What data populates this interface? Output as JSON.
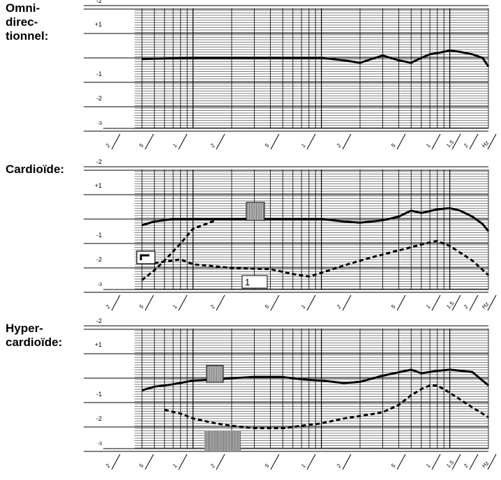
{
  "panels": [
    {
      "label": "Omni-\ndirec-\ntionnel:"
    },
    {
      "label": "Cardioïde:"
    },
    {
      "label": "Hyper-\ncardioïde:"
    }
  ],
  "y_tick_labels": [
    "-2",
    "+1",
    "",
    "-1",
    "-2",
    "-3"
  ],
  "x_tick_labels": [
    "2",
    "5",
    "1",
    "2",
    "5",
    "1",
    "2",
    "5",
    "1",
    "1.5",
    "2",
    "Hz"
  ],
  "chart_data": [
    {
      "type": "line",
      "title": "Omni-directionnel:",
      "x_scale": "log",
      "x_range_hz": [
        20,
        20000
      ],
      "y_unit": "divisions",
      "series": [
        {
          "style": "solid",
          "x": [
            40,
            60,
            100,
            200,
            500,
            1000,
            1500,
            2000,
            3000,
            4000,
            5000,
            6000,
            7000,
            8000,
            10000,
            12000,
            15000,
            18000,
            20000
          ],
          "y": [
            -0.05,
            -0.02,
            0,
            0,
            0,
            0,
            -0.1,
            -0.2,
            0.1,
            -0.1,
            -0.2,
            0.0,
            0.15,
            0.2,
            0.3,
            0.25,
            0.15,
            0.0,
            -0.35
          ]
        }
      ]
    },
    {
      "type": "line",
      "title": "Cardioïde:",
      "x_scale": "log",
      "x_range_hz": [
        20,
        20000
      ],
      "y_unit": "divisions",
      "series": [
        {
          "style": "solid",
          "x": [
            40,
            50,
            70,
            100,
            200,
            500,
            1000,
            1500,
            2000,
            3000,
            4000,
            5000,
            6000,
            8000,
            10000,
            12000,
            15000,
            18000,
            20000
          ],
          "y": [
            -0.25,
            -0.1,
            0,
            0,
            0,
            0,
            0,
            -0.1,
            -0.15,
            -0.05,
            0.1,
            0.35,
            0.25,
            0.4,
            0.45,
            0.35,
            0.1,
            -0.2,
            -0.5
          ]
        },
        {
          "style": "dashed",
          "x": [
            40,
            50,
            60,
            80,
            100,
            150
          ],
          "y": [
            -2.5,
            -2.1,
            -1.7,
            -1.0,
            -0.4,
            -0.05
          ]
        },
        {
          "style": "dashed",
          "x": [
            50,
            80,
            100,
            200,
            400,
            600,
            800,
            1000,
            1500,
            2000,
            3000,
            5000,
            7000,
            8000,
            10000,
            15000,
            20000
          ],
          "y": [
            -1.8,
            -1.65,
            -1.85,
            -2.0,
            -2.05,
            -2.25,
            -2.35,
            -2.2,
            -1.9,
            -1.7,
            -1.45,
            -1.15,
            -0.95,
            -0.9,
            -1.1,
            -1.7,
            -2.3
          ]
        }
      ]
    },
    {
      "type": "line",
      "title": "Hyper-cardioïde:",
      "x_scale": "log",
      "x_range_hz": [
        20,
        20000
      ],
      "y_unit": "divisions",
      "series": [
        {
          "style": "solid",
          "x": [
            40,
            50,
            70,
            100,
            150,
            200,
            300,
            500,
            700,
            1000,
            1500,
            2000,
            3000,
            5000,
            6000,
            8000,
            10000,
            15000,
            20000
          ],
          "y": [
            -0.5,
            -0.35,
            -0.25,
            -0.1,
            -0.05,
            0,
            0.05,
            0.05,
            -0.05,
            -0.1,
            -0.2,
            -0.15,
            0.1,
            0.35,
            0.2,
            0.3,
            0.35,
            0.25,
            -0.3
          ]
        },
        {
          "style": "dashed",
          "x": [
            60,
            80,
            100,
            150,
            200,
            300,
            500,
            700,
            1000,
            1500,
            2000,
            3000,
            4000,
            5000,
            6000,
            7000,
            8000,
            10000,
            15000,
            20000
          ],
          "y": [
            -1.3,
            -1.45,
            -1.65,
            -1.85,
            -1.95,
            -2.05,
            -2.05,
            -1.95,
            -1.85,
            -1.65,
            -1.55,
            -1.4,
            -1.1,
            -0.7,
            -0.45,
            -0.3,
            -0.3,
            -0.6,
            -1.2,
            -1.6
          ]
        }
      ]
    }
  ],
  "colors": {
    "ink": "#000000",
    "background": "#ffffff",
    "legend_shade": "#bdbdbd"
  },
  "callouts": [
    {
      "panel": 1,
      "kind": "box",
      "text": "1"
    },
    {
      "panel": 1,
      "kind": "angle-box",
      "text": ""
    },
    {
      "panel": 1,
      "kind": "shaded-box",
      "text": ""
    },
    {
      "panel": 2,
      "kind": "shaded-box",
      "text": ""
    },
    {
      "panel": 2,
      "kind": "shaded-box",
      "text": ""
    }
  ]
}
